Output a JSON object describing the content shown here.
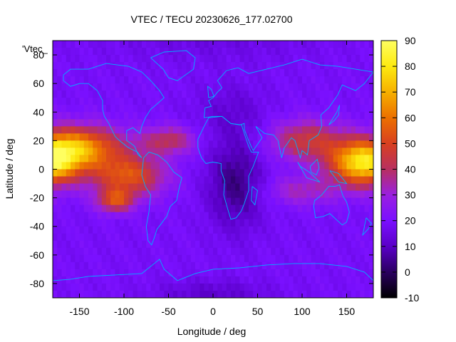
{
  "chart_data": {
    "type": "heatmap",
    "title": "VTEC / TECU 20230626_177.02700",
    "xlabel": "Longitude / deg",
    "ylabel": "Latitude / deg",
    "legend_key": "'Vtec_",
    "xlim": [
      -180,
      180
    ],
    "ylim": [
      -90,
      90
    ],
    "x_ticks": [
      -150,
      -100,
      -50,
      0,
      50,
      100,
      150
    ],
    "y_ticks": [
      -80,
      -60,
      -40,
      -20,
      0,
      20,
      40,
      60,
      80
    ],
    "colorbar": {
      "range": [
        -10,
        90
      ],
      "ticks": [
        -10,
        0,
        10,
        20,
        30,
        40,
        50,
        60,
        70,
        80,
        90
      ],
      "colors": [
        "#000000",
        "#2a0060",
        "#5a00c8",
        "#7a10ff",
        "#9a20e0",
        "#b83060",
        "#d84020",
        "#ec7000",
        "#f6b000",
        "#fdea10",
        "#ffff60"
      ]
    },
    "grid_resolution_deg": [
      5,
      5
    ],
    "overlay": "coastlines",
    "overlay_color": "#00b0ff"
  }
}
